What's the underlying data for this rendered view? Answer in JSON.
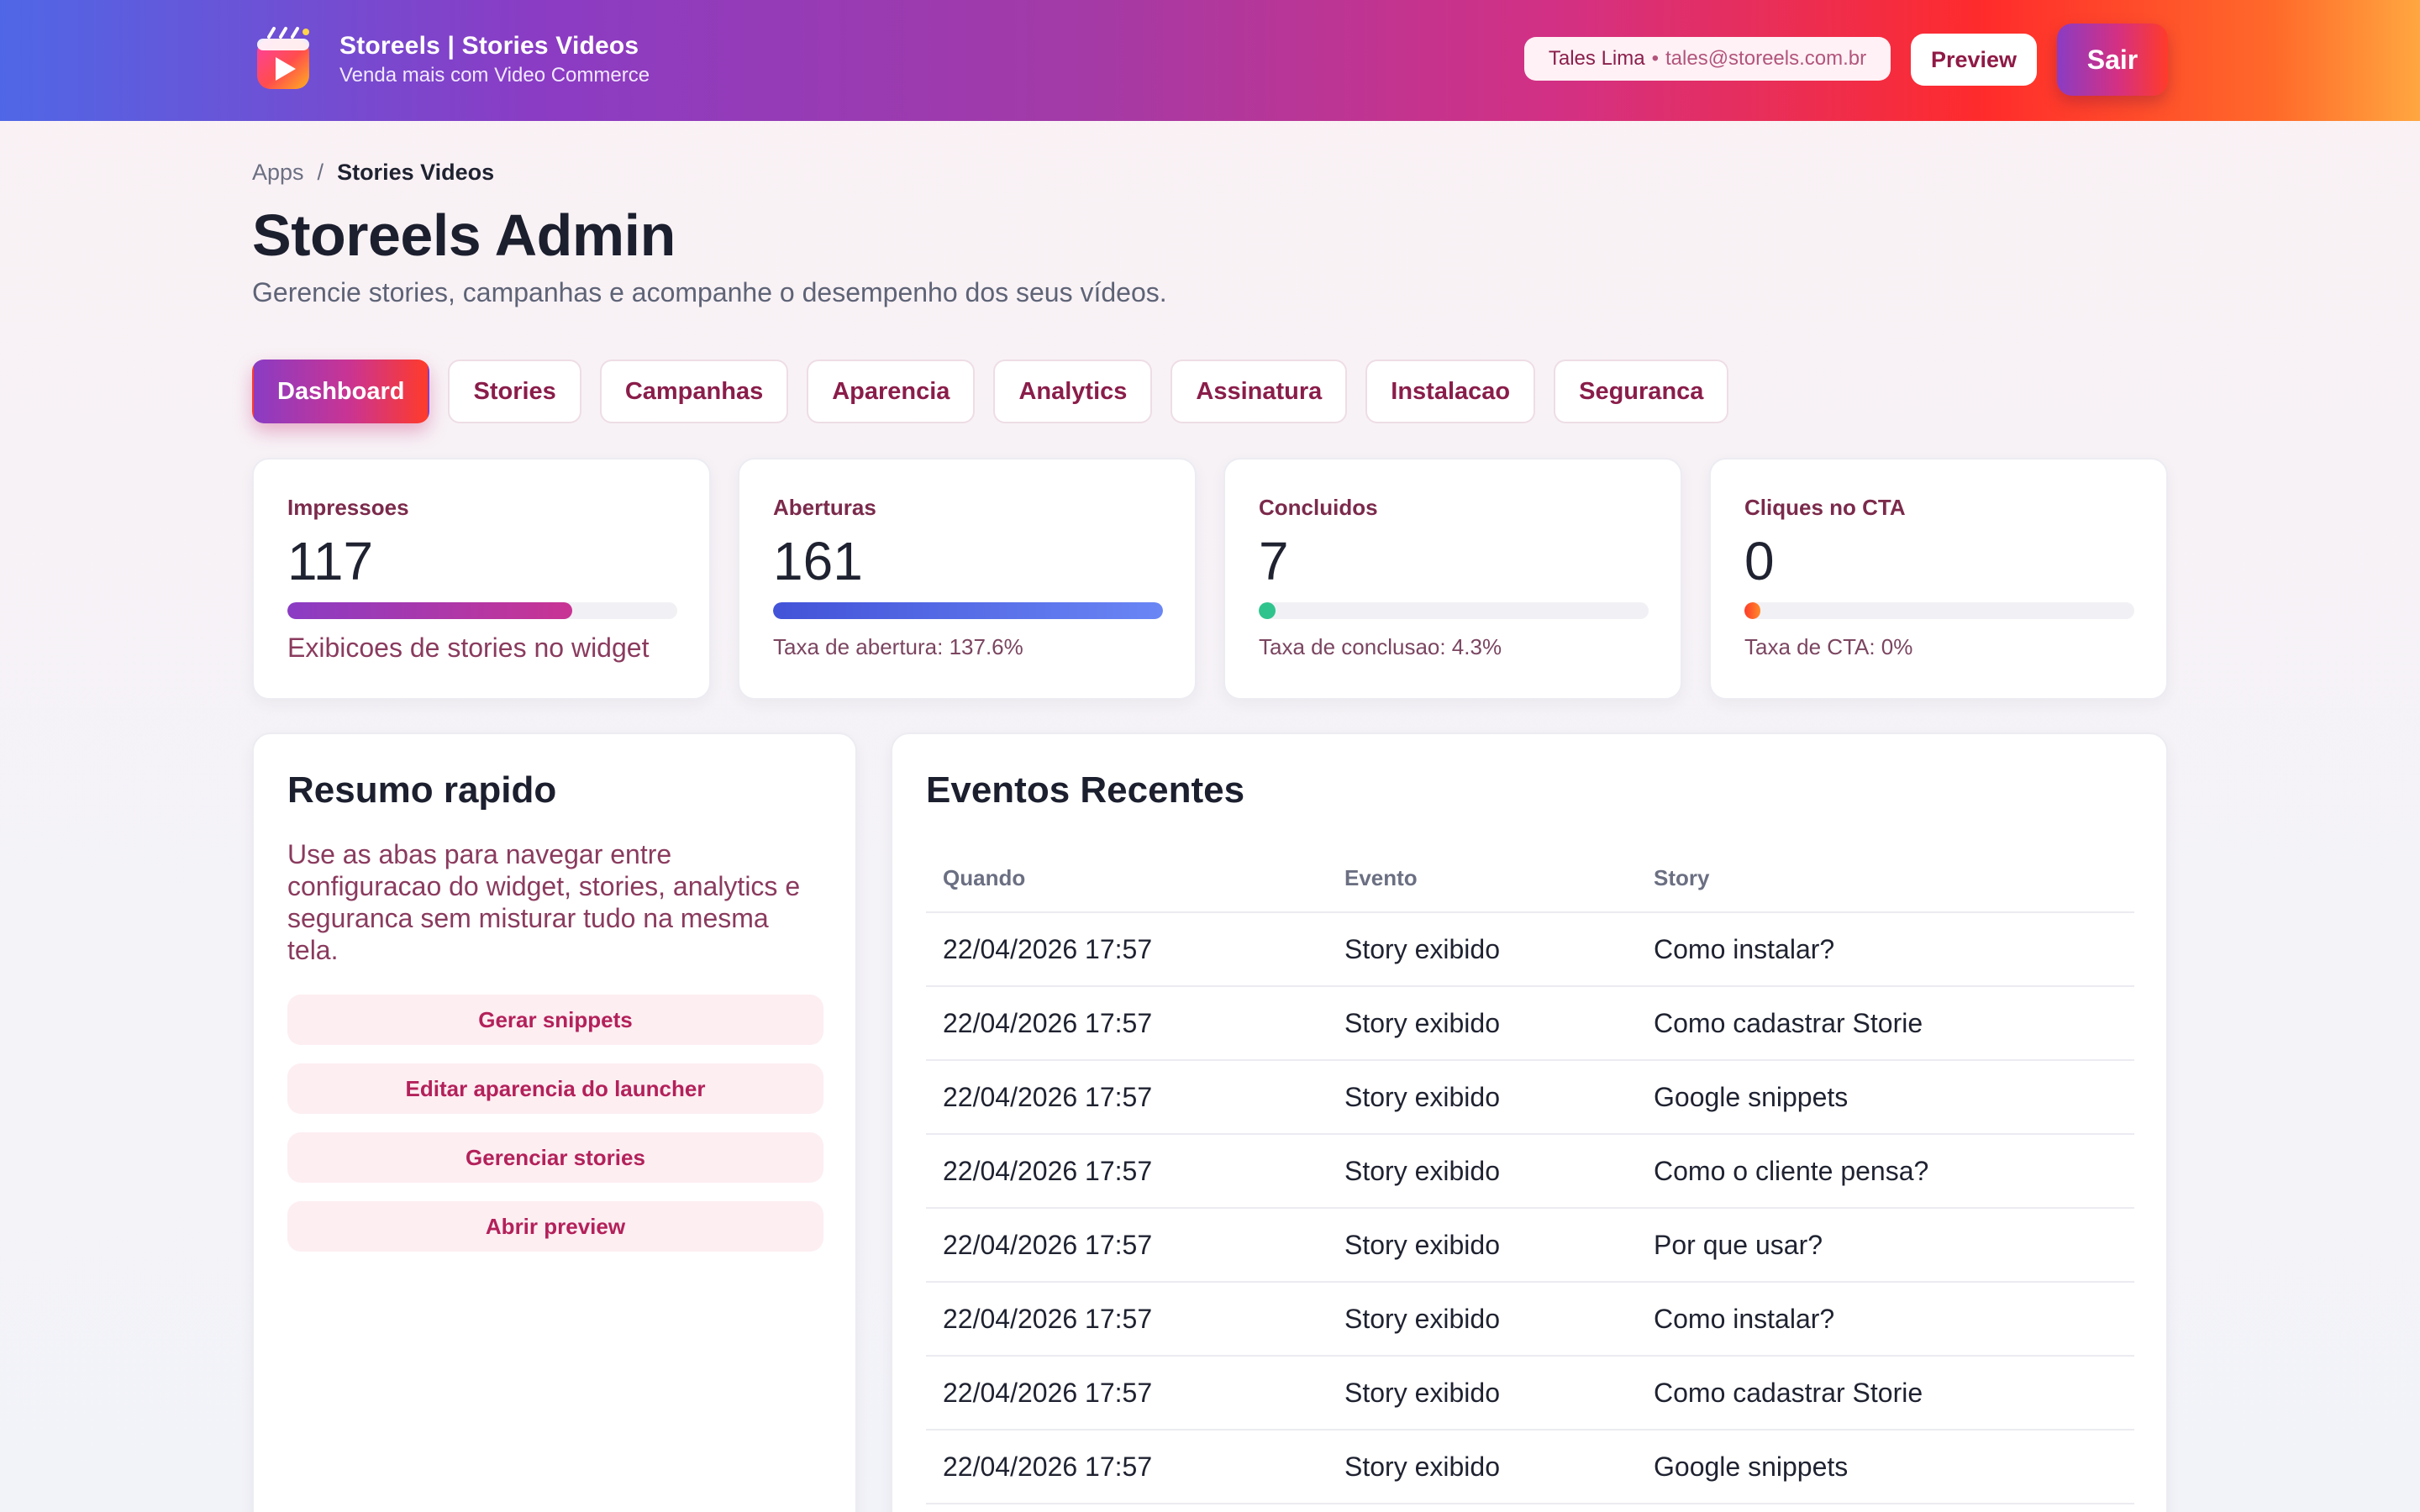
{
  "header": {
    "title": "Storeels | Stories Videos",
    "subtitle": "Venda mais com Video Commerce",
    "user_name": "Tales Lima",
    "separator": "•",
    "user_email": "tales@storeels.com.br",
    "preview_label": "Preview",
    "logout_label": "Sair",
    "logo_icon": "video-play-icon",
    "gradient_colors": [
      "#4f67e6",
      "#8a3cc4",
      "#d43082",
      "#ff2b2b",
      "#ffa740"
    ]
  },
  "breadcrumb": {
    "root": "Apps",
    "separator": "/",
    "current": "Stories Videos"
  },
  "page": {
    "title": "Storeels Admin",
    "subtitle": "Gerencie stories, campanhas e acompanhe o desempenho dos seus vídeos."
  },
  "tabs": [
    {
      "label": "Dashboard",
      "active": true
    },
    {
      "label": "Stories",
      "active": false
    },
    {
      "label": "Campanhas",
      "active": false
    },
    {
      "label": "Aparencia",
      "active": false
    },
    {
      "label": "Analytics",
      "active": false
    },
    {
      "label": "Assinatura",
      "active": false
    },
    {
      "label": "Instalacao",
      "active": false
    },
    {
      "label": "Seguranca",
      "active": false
    }
  ],
  "stats": [
    {
      "label": "Impressoes",
      "value": "117",
      "progress": 0.73,
      "note": "Exibicoes de stories no widget",
      "color": "#a63aa8"
    },
    {
      "label": "Aberturas",
      "value": "161",
      "progress": 1.0,
      "note": "Taxa de abertura: 137.6%",
      "color": "#4f67e6"
    },
    {
      "label": "Concluidos",
      "value": "7",
      "progress": 0.043,
      "note": "Taxa de conclusao: 4.3%",
      "color": "#2fc48d"
    },
    {
      "label": "Cliques no CTA",
      "value": "0",
      "progress": 0.0,
      "note": "Taxa de CTA: 0%",
      "color": "#ff5a2a"
    }
  ],
  "summary": {
    "title": "Resumo rapido",
    "text": "Use as abas para navegar entre configuracao do widget, stories, analytics e seguranca sem misturar tudo na mesma tela.",
    "actions": [
      "Gerar snippets",
      "Editar aparencia do launcher",
      "Gerenciar stories",
      "Abrir preview"
    ]
  },
  "events": {
    "title": "Eventos Recentes",
    "columns": [
      "Quando",
      "Evento",
      "Story"
    ],
    "rows": [
      [
        "22/04/2026 17:57",
        "Story exibido",
        "Como instalar?"
      ],
      [
        "22/04/2026 17:57",
        "Story exibido",
        "Como cadastrar Storie"
      ],
      [
        "22/04/2026 17:57",
        "Story exibido",
        "Google snippets"
      ],
      [
        "22/04/2026 17:57",
        "Story exibido",
        "Como o cliente pensa?"
      ],
      [
        "22/04/2026 17:57",
        "Story exibido",
        "Por que usar?"
      ],
      [
        "22/04/2026 17:57",
        "Story exibido",
        "Como instalar?"
      ],
      [
        "22/04/2026 17:57",
        "Story exibido",
        "Como cadastrar Storie"
      ],
      [
        "22/04/2026 17:57",
        "Story exibido",
        "Google snippets"
      ]
    ]
  }
}
